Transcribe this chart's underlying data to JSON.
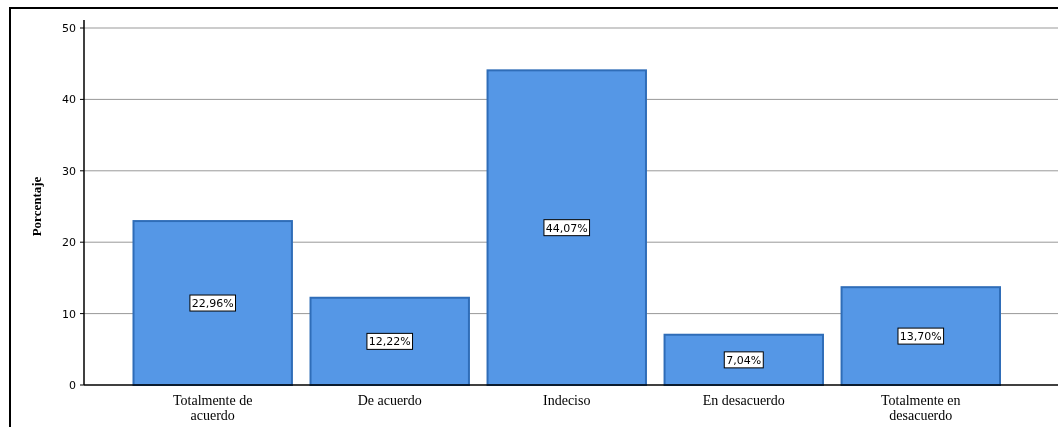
{
  "chart_data": {
    "type": "bar",
    "ylabel": "Porcentaje",
    "categories": [
      "Totalmente de acuerdo",
      "De acuerdo",
      "Indeciso",
      "En desacuerdo",
      "Totalmente en desacuerdo"
    ],
    "values": [
      22.96,
      12.22,
      44.07,
      7.04,
      13.7
    ],
    "value_labels": [
      "22,96%",
      "12,22%",
      "44,07%",
      "7,04%",
      "13,70%"
    ],
    "color": "#5597e6",
    "ylim": [
      0,
      50
    ],
    "yticks": [
      0,
      10,
      20,
      30,
      40,
      50
    ],
    "grid": "y"
  }
}
